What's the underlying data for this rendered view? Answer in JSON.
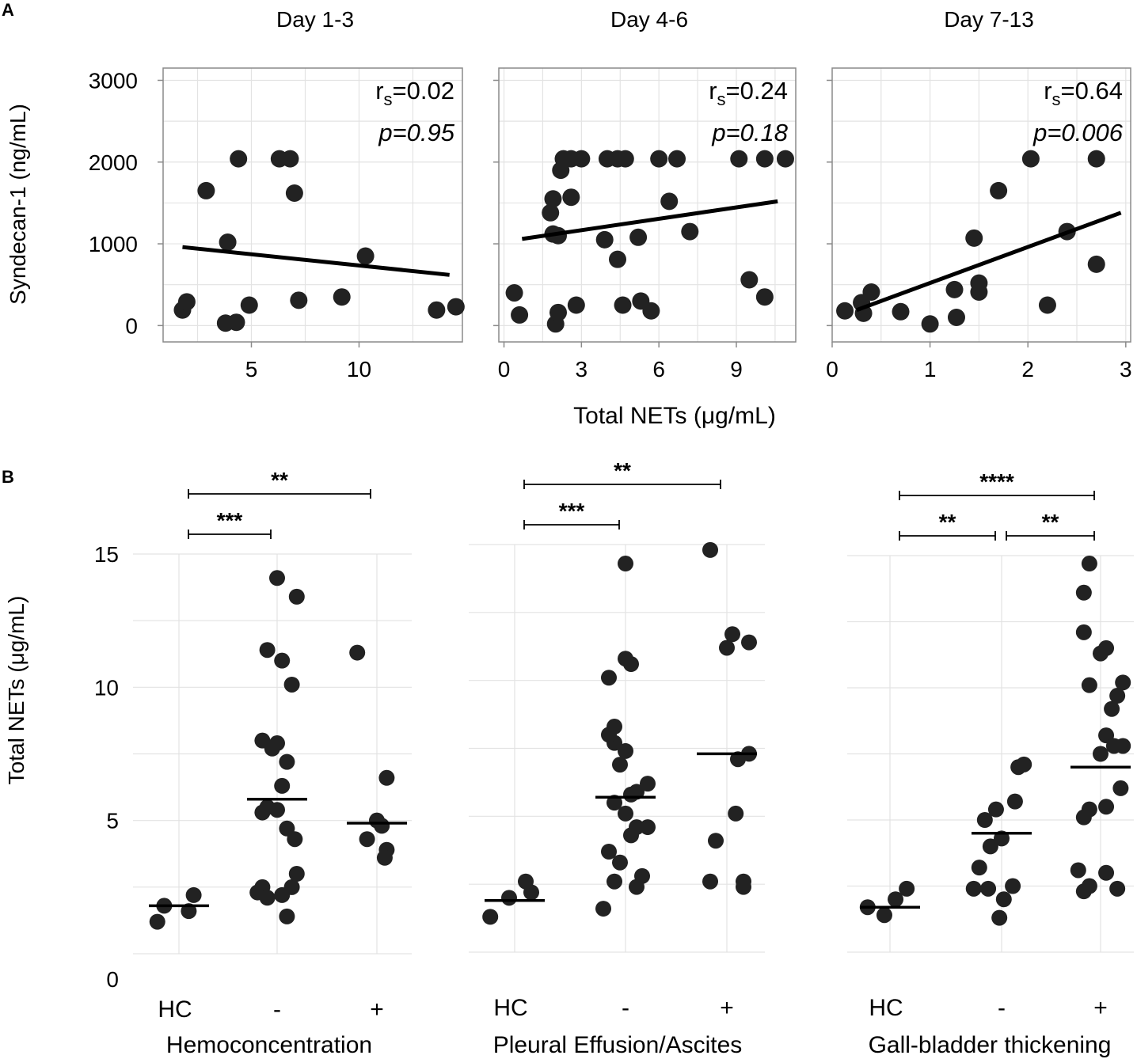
{
  "panel_labels": {
    "a": "A",
    "b": "B"
  },
  "shared": {
    "a_ylabel": "Syndecan-1 (ng/mL)",
    "a_xlabel": "Total NETs (μg/mL)",
    "b_ylabel": "Total NETs (μg/mL)",
    "r_prefix": "r",
    "r_sub": "s"
  },
  "chart_data": [
    {
      "type": "scatter",
      "panel": "A",
      "title": "Day 1-3",
      "xlabel": "Total NETs (μg/mL)",
      "ylabel": "Syndecan-1 (ng/mL)",
      "xlim": [
        0.9,
        14.8
      ],
      "ylim": [
        -200,
        3150
      ],
      "xticks": [
        5,
        10
      ],
      "yticks": [
        0,
        1000,
        2000,
        3000
      ],
      "grid": true,
      "rs": "=0.02",
      "p": "p=0.95",
      "fit": {
        "x1": 1.8,
        "y1": 960,
        "x2": 14.2,
        "y2": 620
      },
      "points": [
        [
          1.8,
          190
        ],
        [
          2.0,
          290
        ],
        [
          2.9,
          1650
        ],
        [
          3.8,
          30
        ],
        [
          3.9,
          1020
        ],
        [
          4.3,
          40
        ],
        [
          4.4,
          2040
        ],
        [
          4.9,
          250
        ],
        [
          6.3,
          2040
        ],
        [
          6.8,
          2040
        ],
        [
          7.0,
          1620
        ],
        [
          7.2,
          310
        ],
        [
          9.2,
          350
        ],
        [
          10.3,
          850
        ],
        [
          13.6,
          190
        ],
        [
          14.5,
          230
        ]
      ]
    },
    {
      "type": "scatter",
      "panel": "A",
      "title": "Day 4-6",
      "xlabel": "Total NETs (μg/mL)",
      "ylabel": "",
      "xlim": [
        -0.2,
        11.3
      ],
      "ylim": [
        -200,
        3150
      ],
      "xticks": [
        0,
        3,
        6,
        9
      ],
      "yticks": [
        0,
        1000,
        2000,
        3000
      ],
      "grid": true,
      "rs": "=0.24",
      "p": "p=0.18",
      "fit": {
        "x1": 0.7,
        "y1": 1060,
        "x2": 10.6,
        "y2": 1520
      },
      "points": [
        [
          0.4,
          400
        ],
        [
          0.6,
          130
        ],
        [
          1.8,
          1380
        ],
        [
          1.9,
          1550
        ],
        [
          1.9,
          1120
        ],
        [
          2.0,
          20
        ],
        [
          2.1,
          1100
        ],
        [
          2.1,
          160
        ],
        [
          2.2,
          1900
        ],
        [
          2.3,
          2040
        ],
        [
          2.6,
          2040
        ],
        [
          2.6,
          1570
        ],
        [
          2.8,
          250
        ],
        [
          3.0,
          2040
        ],
        [
          3.9,
          1050
        ],
        [
          4.0,
          2040
        ],
        [
          4.4,
          2040
        ],
        [
          4.4,
          810
        ],
        [
          4.6,
          250
        ],
        [
          4.7,
          2040
        ],
        [
          5.2,
          1080
        ],
        [
          5.3,
          300
        ],
        [
          5.7,
          180
        ],
        [
          6.0,
          2040
        ],
        [
          6.4,
          1520
        ],
        [
          6.7,
          2040
        ],
        [
          7.2,
          1150
        ],
        [
          9.1,
          2040
        ],
        [
          9.5,
          560
        ],
        [
          10.1,
          350
        ],
        [
          10.1,
          2040
        ],
        [
          10.9,
          2040
        ]
      ]
    },
    {
      "type": "scatter",
      "panel": "A",
      "title": "Day 7-13",
      "xlabel": "Total NETs (μg/mL)",
      "ylabel": "",
      "xlim": [
        0,
        3.05
      ],
      "ylim": [
        -200,
        3150
      ],
      "xticks": [
        0,
        1,
        2,
        3
      ],
      "yticks": [
        0,
        1000,
        2000,
        3000
      ],
      "grid": true,
      "rs": "=0.64",
      "p": "p=0.006",
      "fit": {
        "x1": 0.25,
        "y1": 190,
        "x2": 2.95,
        "y2": 1380
      },
      "points": [
        [
          0.13,
          180
        ],
        [
          0.3,
          280
        ],
        [
          0.32,
          150
        ],
        [
          0.4,
          410
        ],
        [
          0.7,
          170
        ],
        [
          1.0,
          20
        ],
        [
          1.25,
          440
        ],
        [
          1.27,
          100
        ],
        [
          1.45,
          1070
        ],
        [
          1.5,
          410
        ],
        [
          1.5,
          520
        ],
        [
          1.7,
          1650
        ],
        [
          2.03,
          2040
        ],
        [
          2.2,
          250
        ],
        [
          2.4,
          1150
        ],
        [
          2.7,
          2040
        ],
        [
          2.7,
          750
        ]
      ]
    },
    {
      "type": "scatter",
      "panel": "B",
      "xlabel": "Hemoconcentration",
      "ylabel": "Total NETs (μg/mL)",
      "categories": [
        "HC",
        "-",
        "+"
      ],
      "ylim": [
        0,
        15
      ],
      "yticks": [
        0,
        5,
        10,
        15
      ],
      "grid": true,
      "medians": [
        1.8,
        5.8,
        4.9
      ],
      "significance": [
        {
          "from": "HC",
          "to": "-",
          "label": "***",
          "level": 1
        },
        {
          "from": "HC",
          "to": "+",
          "label": "**",
          "level": 2
        }
      ],
      "points": {
        "HC": [
          [
            -0.22,
            1.2
          ],
          [
            -0.15,
            1.8
          ],
          [
            0.1,
            1.6
          ],
          [
            0.15,
            2.2
          ]
        ],
        "-": [
          [
            -0.2,
            2.3
          ],
          [
            -0.15,
            2.5
          ],
          [
            -0.1,
            2.1
          ],
          [
            0.05,
            2.2
          ],
          [
            0.1,
            1.4
          ],
          [
            0.15,
            2.5
          ],
          [
            0.2,
            3.0
          ],
          [
            0.18,
            4.3
          ],
          [
            0.1,
            4.7
          ],
          [
            -0.15,
            5.3
          ],
          [
            -0.1,
            5.5
          ],
          [
            0.0,
            5.4
          ],
          [
            0.05,
            6.3
          ],
          [
            0.1,
            7.2
          ],
          [
            -0.05,
            7.7
          ],
          [
            0.0,
            7.9
          ],
          [
            -0.15,
            8.0
          ],
          [
            0.15,
            10.1
          ],
          [
            -0.1,
            11.4
          ],
          [
            0.05,
            11.0
          ],
          [
            0.0,
            14.1
          ],
          [
            0.2,
            13.4
          ]
        ],
        "+": [
          [
            -0.2,
            11.3
          ],
          [
            -0.1,
            4.3
          ],
          [
            0.0,
            5.0
          ],
          [
            0.05,
            4.8
          ],
          [
            0.1,
            3.9
          ],
          [
            0.08,
            3.6
          ],
          [
            0.1,
            6.6
          ]
        ]
      }
    },
    {
      "type": "scatter",
      "panel": "B",
      "xlabel": "Pleural Effusion/Ascites",
      "ylabel": "",
      "categories": [
        "HC",
        "-",
        "+"
      ],
      "ylim": [
        0,
        15
      ],
      "yticks": [
        0,
        5,
        10,
        15
      ],
      "grid": true,
      "medians": [
        1.9,
        5.7,
        7.3
      ],
      "significance": [
        {
          "from": "HC",
          "to": "-",
          "label": "***",
          "level": 1
        },
        {
          "from": "HC",
          "to": "+",
          "label": "**",
          "level": 2
        }
      ],
      "points": {
        "HC": [
          [
            -0.22,
            1.3
          ],
          [
            -0.05,
            2.0
          ],
          [
            0.15,
            2.2
          ],
          [
            0.1,
            2.6
          ]
        ],
        "-": [
          [
            -0.2,
            1.6
          ],
          [
            -0.1,
            2.6
          ],
          [
            -0.05,
            3.3
          ],
          [
            -0.15,
            3.7
          ],
          [
            0.1,
            2.4
          ],
          [
            0.15,
            2.8
          ],
          [
            0.05,
            4.3
          ],
          [
            0.1,
            4.6
          ],
          [
            0.2,
            4.6
          ],
          [
            0.0,
            5.1
          ],
          [
            -0.1,
            5.5
          ],
          [
            0.05,
            5.8
          ],
          [
            0.1,
            5.9
          ],
          [
            0.2,
            6.2
          ],
          [
            -0.05,
            6.9
          ],
          [
            -0.1,
            7.7
          ],
          [
            0.0,
            7.4
          ],
          [
            -0.15,
            8.0
          ],
          [
            -0.1,
            8.3
          ],
          [
            0.05,
            10.6
          ],
          [
            -0.15,
            10.1
          ],
          [
            0.0,
            10.8
          ],
          [
            0.0,
            14.3
          ]
        ],
        "+": [
          [
            -0.15,
            14.8
          ],
          [
            -0.15,
            2.6
          ],
          [
            -0.1,
            4.1
          ],
          [
            0.15,
            2.6
          ],
          [
            0.05,
            11.7
          ],
          [
            0.2,
            11.4
          ],
          [
            0.0,
            11.2
          ],
          [
            0.1,
            7.1
          ],
          [
            0.2,
            7.3
          ],
          [
            0.08,
            5.1
          ],
          [
            0.15,
            2.4
          ]
        ]
      }
    },
    {
      "type": "scatter",
      "panel": "B",
      "xlabel": "Gall-bladder thickening",
      "ylabel": "",
      "categories": [
        "HC",
        "-",
        "+"
      ],
      "ylim": [
        0,
        15
      ],
      "yticks": [
        0,
        5,
        10,
        15
      ],
      "grid": true,
      "medians": [
        1.7,
        4.5,
        7.0
      ],
      "significance": [
        {
          "from": "HC",
          "to": "-",
          "label": "**",
          "level": 1
        },
        {
          "from": "-",
          "to": "+",
          "label": "**",
          "level": 1
        },
        {
          "from": "HC",
          "to": "+",
          "label": "****",
          "level": 2
        }
      ],
      "points": {
        "HC": [
          [
            -0.2,
            1.7
          ],
          [
            -0.05,
            1.4
          ],
          [
            0.05,
            2.0
          ],
          [
            0.15,
            2.4
          ]
        ],
        "-": [
          [
            -0.25,
            2.4
          ],
          [
            -0.2,
            3.2
          ],
          [
            -0.15,
            5.0
          ],
          [
            -0.1,
            4.0
          ],
          [
            -0.12,
            2.4
          ],
          [
            0.0,
            4.3
          ],
          [
            -0.05,
            5.4
          ],
          [
            -0.02,
            1.3
          ],
          [
            0.02,
            2.0
          ],
          [
            0.1,
            2.5
          ],
          [
            0.12,
            5.7
          ],
          [
            0.15,
            7.0
          ],
          [
            0.2,
            7.1
          ]
        ],
        "+": [
          [
            -0.15,
            2.3
          ],
          [
            -0.1,
            2.5
          ],
          [
            -0.2,
            3.1
          ],
          [
            -0.15,
            5.1
          ],
          [
            -0.1,
            5.4
          ],
          [
            0.05,
            5.5
          ],
          [
            0.0,
            7.5
          ],
          [
            0.05,
            8.2
          ],
          [
            0.1,
            9.2
          ],
          [
            0.15,
            9.7
          ],
          [
            0.2,
            10.2
          ],
          [
            0.0,
            11.3
          ],
          [
            0.05,
            11.5
          ],
          [
            -0.1,
            10.1
          ],
          [
            -0.15,
            12.1
          ],
          [
            -0.1,
            14.7
          ],
          [
            -0.15,
            13.6
          ],
          [
            0.15,
            2.4
          ],
          [
            0.18,
            6.2
          ],
          [
            0.12,
            7.8
          ],
          [
            0.2,
            7.8
          ],
          [
            0.05,
            3.0
          ]
        ]
      }
    }
  ]
}
